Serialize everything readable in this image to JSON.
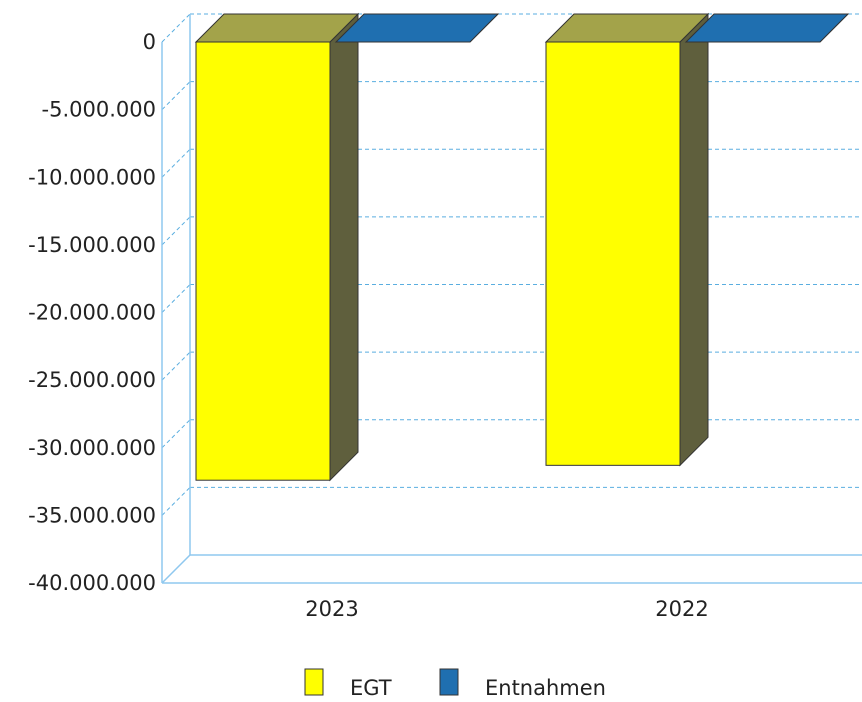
{
  "chart_data": {
    "type": "bar",
    "style": "3d-column",
    "categories": [
      "2023",
      "2022"
    ],
    "series": [
      {
        "name": "EGT",
        "values": [
          -32400000,
          -31300000
        ],
        "color": "#ffff00",
        "top_color": "#a3a34a",
        "side_color": "#5f5f3d"
      },
      {
        "name": "Entnahmen",
        "values": [
          0,
          0
        ],
        "color": "#1f6fb0",
        "top_color": "#1f6fb0",
        "side_color": "#174f80"
      }
    ],
    "ylim": [
      -40000000,
      0
    ],
    "yticks": [
      0,
      -5000000,
      -10000000,
      -15000000,
      -20000000,
      -25000000,
      -30000000,
      -35000000,
      -40000000
    ],
    "ytick_labels": [
      "0",
      "-5.000.000",
      "-10.000.000",
      "-15.000.000",
      "-20.000.000",
      "-25.000.000",
      "-30.000.000",
      "-35.000.000",
      "-40.000.000"
    ],
    "grid": true,
    "grid_style": "dashed",
    "grid_color": "#5aaee0",
    "axis_color": "#8fc8ef",
    "legend_position": "bottom",
    "title": "",
    "xlabel": "",
    "ylabel": ""
  }
}
